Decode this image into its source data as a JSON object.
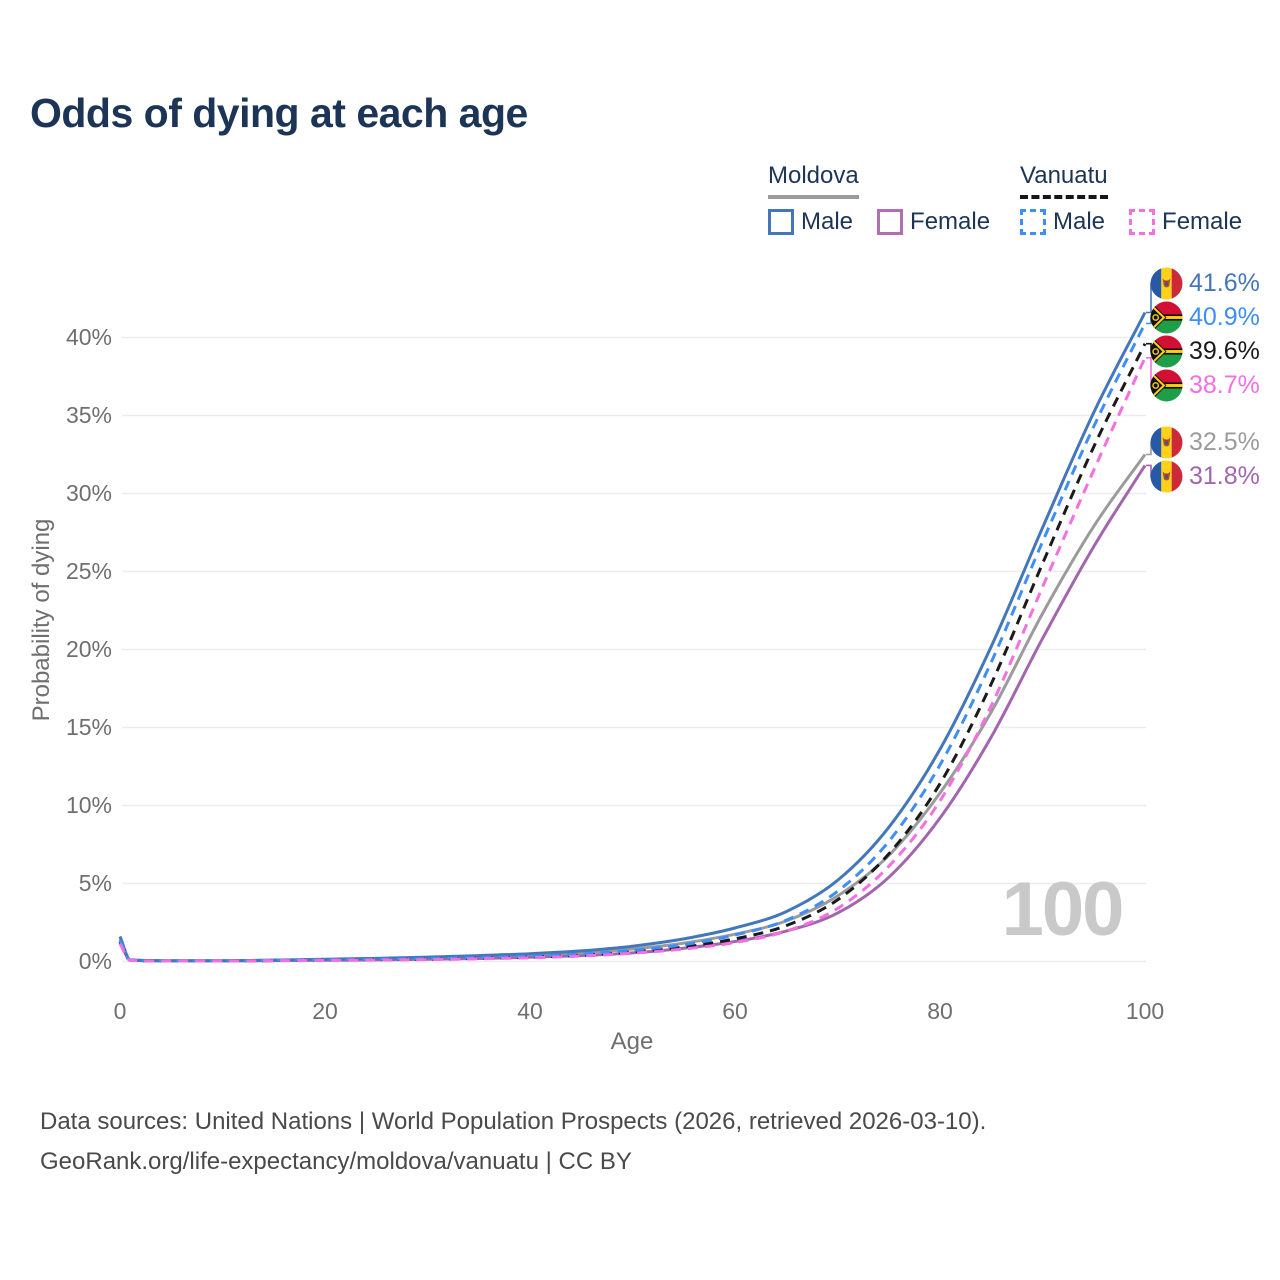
{
  "title": "Odds of dying at each age",
  "watermark": "100",
  "colors": {
    "title_text": "#1C3557",
    "axis_text": "#6F6F6F",
    "grid": "#ECECEC",
    "watermark": "#C9C9C9",
    "moldova_male": "#4377BA",
    "moldova_female": "#A266AE",
    "moldova_total": "#9B9B9B",
    "vanuatu_male": "#3E8EF7",
    "vanuatu_female": "#F56FE3",
    "vanuatu_total": "#1A1A1A"
  },
  "legend": {
    "groups": [
      {
        "name": "Moldova",
        "line_color": "#9B9B9B",
        "line_style": "solid",
        "items": [
          {
            "label": "Male",
            "color": "#4377BA",
            "dashed": false
          },
          {
            "label": "Female",
            "color": "#B06FB0",
            "dashed": false
          }
        ]
      },
      {
        "name": "Vanuatu",
        "line_color": "#161616",
        "line_style": "dashed",
        "items": [
          {
            "label": "Male",
            "color": "#3E8EF7",
            "dashed": true
          },
          {
            "label": "Female",
            "color": "#F56FE3",
            "dashed": true
          }
        ]
      }
    ]
  },
  "chart_data": {
    "type": "line",
    "title": "Odds of dying at each age",
    "xlabel": "Age",
    "ylabel": "Probability of dying",
    "xlim": [
      0,
      100
    ],
    "ylim": [
      0,
      43.5
    ],
    "grid": "horizontal",
    "legend_position": "top-right",
    "x_ticks": [
      0,
      20,
      40,
      60,
      80,
      100
    ],
    "y_ticks": [
      {
        "value": 0,
        "label": "0%"
      },
      {
        "value": 5,
        "label": "5%"
      },
      {
        "value": 10,
        "label": "10%"
      },
      {
        "value": 15,
        "label": "15%"
      },
      {
        "value": 20,
        "label": "20%"
      },
      {
        "value": 25,
        "label": "25%"
      },
      {
        "value": 30,
        "label": "30%"
      },
      {
        "value": 35,
        "label": "35%"
      },
      {
        "value": 40,
        "label": "40%"
      }
    ],
    "series": [
      {
        "id": "moldova-total",
        "label": "Moldova",
        "country": "Moldova",
        "sex": "both",
        "color": "#9B9B9B",
        "dashed": false,
        "flag": "moldova",
        "end_label": "32.5%",
        "end_value": 32.5,
        "points": [
          [
            0,
            1.45
          ],
          [
            1,
            0.09
          ],
          [
            5,
            0.045
          ],
          [
            10,
            0.045
          ],
          [
            15,
            0.08
          ],
          [
            20,
            0.12
          ],
          [
            25,
            0.16
          ],
          [
            30,
            0.22
          ],
          [
            35,
            0.3
          ],
          [
            40,
            0.42
          ],
          [
            45,
            0.56
          ],
          [
            50,
            0.8
          ],
          [
            55,
            1.18
          ],
          [
            60,
            1.75
          ],
          [
            65,
            2.6
          ],
          [
            70,
            4.2
          ],
          [
            75,
            6.8
          ],
          [
            80,
            10.8
          ],
          [
            85,
            16.0
          ],
          [
            90,
            22.3
          ],
          [
            95,
            27.9
          ],
          [
            100,
            32.5
          ]
        ]
      },
      {
        "id": "moldova-female",
        "label": "Female",
        "country": "Moldova",
        "sex": "female",
        "color": "#A266AE",
        "dashed": false,
        "flag": "moldova",
        "end_label": "31.8%",
        "end_value": 31.8,
        "points": [
          [
            0,
            1.3
          ],
          [
            1,
            0.08
          ],
          [
            5,
            0.04
          ],
          [
            10,
            0.04
          ],
          [
            15,
            0.06
          ],
          [
            20,
            0.08
          ],
          [
            25,
            0.1
          ],
          [
            30,
            0.14
          ],
          [
            35,
            0.19
          ],
          [
            40,
            0.27
          ],
          [
            45,
            0.38
          ],
          [
            50,
            0.55
          ],
          [
            55,
            0.85
          ],
          [
            60,
            1.28
          ],
          [
            65,
            1.95
          ],
          [
            70,
            3.1
          ],
          [
            75,
            5.4
          ],
          [
            80,
            9.2
          ],
          [
            85,
            14.4
          ],
          [
            90,
            20.7
          ],
          [
            95,
            26.6
          ],
          [
            100,
            31.8
          ]
        ]
      },
      {
        "id": "moldova-male",
        "label": "Male",
        "country": "Moldova",
        "sex": "male",
        "color": "#4377BA",
        "dashed": false,
        "flag": "moldova",
        "end_label": "41.6%",
        "end_value": 41.6,
        "points": [
          [
            0,
            1.6
          ],
          [
            1,
            0.1
          ],
          [
            5,
            0.05
          ],
          [
            10,
            0.05
          ],
          [
            15,
            0.09
          ],
          [
            20,
            0.15
          ],
          [
            25,
            0.2
          ],
          [
            30,
            0.28
          ],
          [
            35,
            0.38
          ],
          [
            40,
            0.5
          ],
          [
            45,
            0.68
          ],
          [
            50,
            0.98
          ],
          [
            55,
            1.45
          ],
          [
            60,
            2.15
          ],
          [
            65,
            3.2
          ],
          [
            70,
            5.2
          ],
          [
            75,
            8.6
          ],
          [
            80,
            13.6
          ],
          [
            85,
            20.2
          ],
          [
            90,
            27.8
          ],
          [
            95,
            35.2
          ],
          [
            100,
            41.6
          ]
        ]
      },
      {
        "id": "vanuatu-total",
        "label": "Vanuatu",
        "country": "Vanuatu",
        "sex": "both",
        "color": "#1A1A1A",
        "dashed": true,
        "flag": "vanuatu",
        "end_label": "39.6%",
        "end_value": 39.6,
        "points": [
          [
            0,
            1.25
          ],
          [
            1,
            0.08
          ],
          [
            5,
            0.035
          ],
          [
            10,
            0.035
          ],
          [
            15,
            0.06
          ],
          [
            20,
            0.09
          ],
          [
            25,
            0.12
          ],
          [
            30,
            0.15
          ],
          [
            35,
            0.21
          ],
          [
            40,
            0.29
          ],
          [
            45,
            0.41
          ],
          [
            50,
            0.62
          ],
          [
            55,
            0.93
          ],
          [
            60,
            1.45
          ],
          [
            65,
            2.3
          ],
          [
            70,
            3.95
          ],
          [
            75,
            6.9
          ],
          [
            80,
            11.4
          ],
          [
            85,
            17.8
          ],
          [
            90,
            25.5
          ],
          [
            95,
            33.0
          ],
          [
            100,
            39.6
          ]
        ]
      },
      {
        "id": "vanuatu-male",
        "label": "Male",
        "country": "Vanuatu",
        "sex": "male",
        "color": "#3E8EF7",
        "dashed": true,
        "flag": "vanuatu",
        "end_label": "40.9%",
        "end_value": 40.9,
        "points": [
          [
            0,
            1.35
          ],
          [
            1,
            0.09
          ],
          [
            5,
            0.04
          ],
          [
            10,
            0.04
          ],
          [
            15,
            0.07
          ],
          [
            20,
            0.11
          ],
          [
            25,
            0.14
          ],
          [
            30,
            0.18
          ],
          [
            35,
            0.25
          ],
          [
            40,
            0.34
          ],
          [
            45,
            0.48
          ],
          [
            50,
            0.72
          ],
          [
            55,
            1.08
          ],
          [
            60,
            1.7
          ],
          [
            65,
            2.65
          ],
          [
            70,
            4.5
          ],
          [
            75,
            7.7
          ],
          [
            80,
            12.6
          ],
          [
            85,
            19.2
          ],
          [
            90,
            26.9
          ],
          [
            95,
            34.3
          ],
          [
            100,
            40.9
          ]
        ]
      },
      {
        "id": "vanuatu-female",
        "label": "Female",
        "country": "Vanuatu",
        "sex": "female",
        "color": "#F56FE3",
        "dashed": true,
        "flag": "vanuatu",
        "end_label": "38.7%",
        "end_value": 38.7,
        "points": [
          [
            0,
            1.15
          ],
          [
            1,
            0.07
          ],
          [
            5,
            0.03
          ],
          [
            10,
            0.03
          ],
          [
            15,
            0.05
          ],
          [
            20,
            0.07
          ],
          [
            25,
            0.09
          ],
          [
            30,
            0.12
          ],
          [
            35,
            0.17
          ],
          [
            40,
            0.24
          ],
          [
            45,
            0.35
          ],
          [
            50,
            0.53
          ],
          [
            55,
            0.8
          ],
          [
            60,
            1.22
          ],
          [
            65,
            1.95
          ],
          [
            70,
            3.4
          ],
          [
            75,
            6.1
          ],
          [
            80,
            10.3
          ],
          [
            85,
            16.4
          ],
          [
            90,
            24.0
          ],
          [
            95,
            31.5
          ],
          [
            100,
            38.7
          ]
        ]
      }
    ]
  },
  "footer": {
    "line1": "Data sources: United Nations | World Population Prospects (2026, retrieved 2026-03-10).",
    "line2": "GeoRank.org/life-expectancy/moldova/vanuatu | CC BY"
  }
}
